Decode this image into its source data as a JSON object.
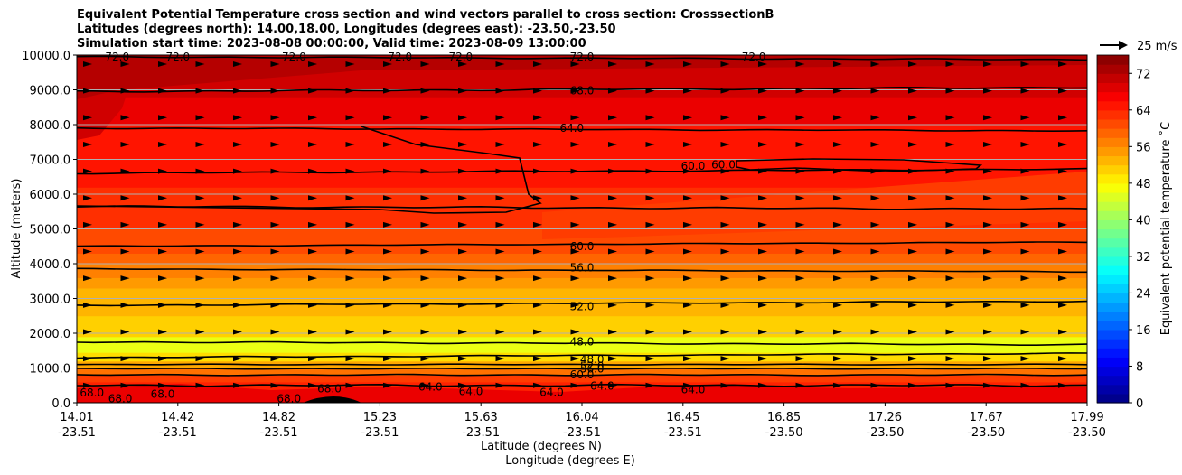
{
  "chart_data": {
    "type": "contour",
    "title_lines": [
      "Equivalent Potential Temperature cross section and wind vectors parallel to cross section: CrosssectionB",
      "Latitudes (degrees north): 14.00,18.00, Longitudes (degrees east): -23.50,-23.50",
      "Simulation start time: 2023-08-08 00:00:00, Valid time: 2023-08-09 13:00:00"
    ],
    "ylabel": "Altitude (meters)",
    "xlabel_lat": "Latitude (degrees N)",
    "xlabel_lon": "Longitude (degrees E)",
    "ylim": [
      0,
      10000
    ],
    "yticks": [
      "0.0",
      "1000.0",
      "2000.0",
      "3000.0",
      "4000.0",
      "5000.0",
      "6000.0",
      "7000.0",
      "8000.0",
      "9000.0",
      "10000.0"
    ],
    "xtick_lat": [
      "14.01",
      "14.42",
      "14.82",
      "15.23",
      "15.63",
      "16.04",
      "16.45",
      "16.85",
      "17.26",
      "17.67",
      "17.99"
    ],
    "xtick_lon": [
      "-23.51",
      "-23.51",
      "-23.51",
      "-23.51",
      "-23.51",
      "-23.51",
      "-23.51",
      "-23.50",
      "-23.50",
      "-23.50",
      "-23.50"
    ],
    "colorbar": {
      "label": "Equivalent potential temperature ˚C",
      "min": 0,
      "max": 76,
      "ticks": [
        "0",
        "8",
        "16",
        "24",
        "32",
        "40",
        "48",
        "56",
        "64",
        "72"
      ]
    },
    "quiver_key": {
      "label": "25 m/s"
    },
    "contour_labels": [
      {
        "value": "72.0",
        "alt": 9950,
        "lat_frac": 0.5
      },
      {
        "value": "68.0",
        "alt": 8980,
        "lat_frac": 0.5
      },
      {
        "value": "64.0",
        "alt": 7900,
        "lat_frac": 0.49
      },
      {
        "value": "60.0",
        "alt": 6800,
        "lat_frac": 0.61
      },
      {
        "value": "60.0",
        "alt": 6850,
        "lat_frac": 0.64
      },
      {
        "value": "60.0",
        "alt": 4500,
        "lat_frac": 0.5
      },
      {
        "value": "56.0",
        "alt": 3880,
        "lat_frac": 0.5
      },
      {
        "value": "52.0",
        "alt": 2770,
        "lat_frac": 0.5
      },
      {
        "value": "48.0",
        "alt": 1750,
        "lat_frac": 0.5
      },
      {
        "value": "48.0",
        "alt": 1250,
        "lat_frac": 0.51
      },
      {
        "value": "52.0",
        "alt": 1050,
        "lat_frac": 0.51
      },
      {
        "value": "56.0",
        "alt": 980,
        "lat_frac": 0.51
      },
      {
        "value": "60.0",
        "alt": 800,
        "lat_frac": 0.5
      },
      {
        "value": "64.0",
        "alt": 480,
        "lat_frac": 0.52
      },
      {
        "value": "64.0",
        "alt": 450,
        "lat_frac": 0.35
      },
      {
        "value": "64.0",
        "alt": 330,
        "lat_frac": 0.39
      },
      {
        "value": "64.0",
        "alt": 300,
        "lat_frac": 0.47
      },
      {
        "value": "64.0",
        "alt": 380,
        "lat_frac": 0.61
      },
      {
        "value": "68.0",
        "alt": 280,
        "lat_frac": 0.015
      },
      {
        "value": "68.0",
        "alt": 120,
        "lat_frac": 0.043
      },
      {
        "value": "68.0",
        "alt": 250,
        "lat_frac": 0.085
      },
      {
        "value": "68.0",
        "alt": 120,
        "lat_frac": 0.21
      },
      {
        "value": "68.0",
        "alt": 400,
        "lat_frac": 0.25
      },
      {
        "value": "72.0",
        "alt": 9950,
        "lat_frac": 0.04
      },
      {
        "value": "72.0",
        "alt": 9950,
        "lat_frac": 0.1
      },
      {
        "value": "72.0",
        "alt": 9950,
        "lat_frac": 0.215
      },
      {
        "value": "72.0",
        "alt": 9950,
        "lat_frac": 0.32
      },
      {
        "value": "72.0",
        "alt": 9950,
        "lat_frac": 0.38
      },
      {
        "value": "72.0",
        "alt": 9950,
        "lat_frac": 0.67
      }
    ]
  }
}
